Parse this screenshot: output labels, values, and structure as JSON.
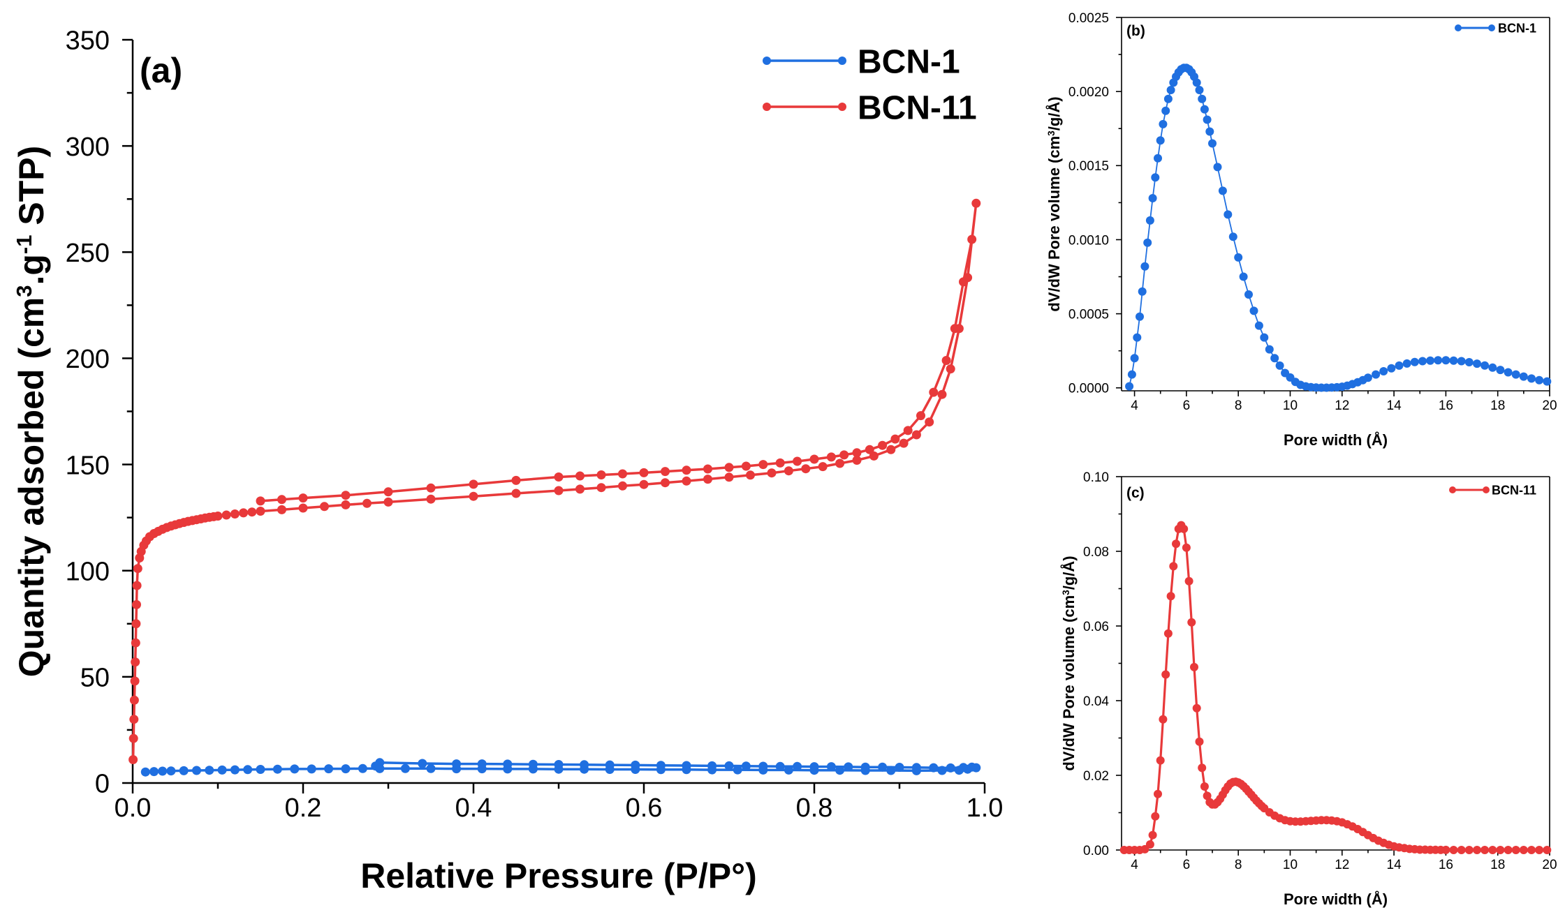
{
  "chart_data": [
    {
      "type": "line",
      "panel_label": "(a)",
      "xlabel": "Relative Pressure (P/P°)",
      "ylabel_parts": [
        "Quantity adsorbed (cm",
        "3",
        ".g",
        "-1",
        " STP)"
      ],
      "xlim": [
        0.0,
        1.0
      ],
      "ylim": [
        0,
        350
      ],
      "xticks": [
        0.0,
        0.2,
        0.4,
        0.6,
        0.8,
        1.0
      ],
      "xtick_labels": [
        "0.0",
        "0.2",
        "0.4",
        "0.6",
        "0.8",
        "1.0"
      ],
      "yticks": [
        0,
        50,
        100,
        150,
        200,
        250,
        300,
        350
      ],
      "ytick_labels": [
        "0",
        "50",
        "100",
        "150",
        "200",
        "250",
        "300",
        "350"
      ],
      "legend": [
        "BCN-1",
        "BCN-11"
      ],
      "legend_position": "top-right",
      "series": [
        {
          "name": "BCN-1",
          "color": "#1f6fe0",
          "x": [
            0.015,
            0.025,
            0.035,
            0.045,
            0.06,
            0.075,
            0.09,
            0.105,
            0.12,
            0.135,
            0.15,
            0.17,
            0.19,
            0.21,
            0.23,
            0.25,
            0.27,
            0.29,
            0.32,
            0.35,
            0.38,
            0.41,
            0.44,
            0.47,
            0.5,
            0.53,
            0.56,
            0.59,
            0.62,
            0.65,
            0.68,
            0.71,
            0.74,
            0.77,
            0.8,
            0.83,
            0.86,
            0.89,
            0.92,
            0.95,
            0.97,
            0.98,
            0.99,
            0.985,
            0.975,
            0.96,
            0.94,
            0.92,
            0.9,
            0.88,
            0.86,
            0.84,
            0.82,
            0.8,
            0.78,
            0.76,
            0.74,
            0.72,
            0.7,
            0.68,
            0.65,
            0.62,
            0.59,
            0.56,
            0.53,
            0.5,
            0.47,
            0.44,
            0.41,
            0.38,
            0.34,
            0.29,
            0.285,
            0.29
          ],
          "y": [
            5.2,
            5.4,
            5.6,
            5.7,
            5.8,
            5.9,
            6.0,
            6.1,
            6.2,
            6.3,
            6.4,
            6.5,
            6.6,
            6.6,
            6.7,
            6.7,
            6.8,
            6.8,
            6.8,
            6.8,
            6.7,
            6.7,
            6.6,
            6.6,
            6.5,
            6.5,
            6.4,
            6.4,
            6.3,
            6.3,
            6.2,
            6.2,
            6.1,
            6.1,
            6.0,
            6.0,
            5.9,
            5.9,
            5.8,
            5.9,
            6.0,
            6.5,
            7.2,
            7.5,
            7.3,
            7.1,
            7.2,
            7.3,
            7.4,
            7.5,
            7.5,
            7.6,
            7.7,
            7.7,
            7.8,
            7.8,
            7.9,
            8.0,
            8.1,
            8.1,
            8.2,
            8.3,
            8.4,
            8.5,
            8.6,
            8.7,
            8.8,
            8.9,
            9.0,
            9.0,
            9.2,
            9.6,
            8.0,
            6.8
          ]
        },
        {
          "name": "BCN-11",
          "color": "#e8393a",
          "x": [
            0.0005,
            0.001,
            0.0015,
            0.002,
            0.0025,
            0.003,
            0.0035,
            0.004,
            0.0045,
            0.005,
            0.006,
            0.008,
            0.01,
            0.013,
            0.016,
            0.02,
            0.025,
            0.03,
            0.035,
            0.04,
            0.045,
            0.05,
            0.055,
            0.06,
            0.065,
            0.07,
            0.075,
            0.08,
            0.085,
            0.09,
            0.095,
            0.1,
            0.11,
            0.12,
            0.13,
            0.14,
            0.15,
            0.175,
            0.2,
            0.225,
            0.25,
            0.275,
            0.3,
            0.35,
            0.4,
            0.45,
            0.5,
            0.525,
            0.55,
            0.575,
            0.6,
            0.625,
            0.65,
            0.675,
            0.7,
            0.725,
            0.75,
            0.77,
            0.79,
            0.81,
            0.83,
            0.85,
            0.87,
            0.89,
            0.905,
            0.92,
            0.935,
            0.95,
            0.96,
            0.97,
            0.98,
            0.99,
            0.985,
            0.975,
            0.965,
            0.955,
            0.94,
            0.925,
            0.91,
            0.895,
            0.88,
            0.865,
            0.85,
            0.835,
            0.82,
            0.8,
            0.78,
            0.76,
            0.74,
            0.72,
            0.7,
            0.675,
            0.65,
            0.625,
            0.6,
            0.575,
            0.55,
            0.525,
            0.5,
            0.45,
            0.4,
            0.35,
            0.3,
            0.25,
            0.2,
            0.175,
            0.15
          ],
          "y": [
            11,
            21,
            30,
            39,
            48,
            57,
            66,
            75,
            84,
            93,
            101,
            106,
            109,
            112,
            114,
            116,
            117.5,
            118.5,
            119.5,
            120.3,
            121,
            121.6,
            122.2,
            122.7,
            123.2,
            123.6,
            124,
            124.4,
            124.8,
            125.1,
            125.4,
            125.7,
            126.2,
            126.7,
            127.2,
            127.6,
            128,
            128.7,
            129.5,
            130.2,
            131,
            131.7,
            132.3,
            133.7,
            135,
            136.4,
            137.7,
            138.4,
            139.1,
            139.9,
            140.6,
            141.4,
            142.2,
            143.1,
            144,
            145,
            146,
            147,
            148,
            149,
            150.5,
            152,
            154,
            157,
            160,
            164,
            170,
            183,
            195,
            214,
            238,
            273,
            256,
            236,
            214,
            199,
            184,
            173,
            166,
            162,
            159,
            157,
            155.5,
            154.5,
            153.5,
            152.5,
            151.5,
            150.7,
            150,
            149.2,
            148.6,
            147.9,
            147.3,
            146.7,
            146.1,
            145.6,
            145.1,
            144.6,
            144.1,
            142.5,
            140.7,
            138.9,
            137.1,
            135.5,
            134.2,
            133.5,
            132.8
          ]
        }
      ]
    },
    {
      "type": "line",
      "panel_label": "(b)",
      "xlabel": "Pore width (Å)",
      "ylabel_parts": [
        "dV/dW Pore volume (cm",
        "3",
        "/g/Å)"
      ],
      "xlim": [
        3.5,
        20
      ],
      "ylim": [
        -2e-05,
        0.0025
      ],
      "xticks": [
        4,
        6,
        8,
        10,
        12,
        14,
        16,
        18,
        20
      ],
      "xtick_labels": [
        "4",
        "6",
        "8",
        "10",
        "12",
        "14",
        "16",
        "18",
        "20"
      ],
      "yticks": [
        0,
        0.0005,
        0.001,
        0.0015,
        0.002,
        0.0025
      ],
      "ytick_labels": [
        "0.0000",
        "0.0005",
        "0.0010",
        "0.0015",
        "0.0020",
        "0.0025"
      ],
      "legend": [
        "BCN-1"
      ],
      "legend_position": "top-right",
      "series": [
        {
          "name": "BCN-1",
          "color": "#1f6fe0",
          "x": [
            3.8,
            3.9,
            4,
            4.1,
            4.2,
            4.3,
            4.4,
            4.5,
            4.6,
            4.7,
            4.8,
            4.9,
            5,
            5.1,
            5.2,
            5.3,
            5.4,
            5.5,
            5.6,
            5.7,
            5.8,
            5.9,
            6,
            6.1,
            6.2,
            6.3,
            6.4,
            6.5,
            6.6,
            6.7,
            6.8,
            6.9,
            7,
            7.2,
            7.4,
            7.6,
            7.8,
            8,
            8.2,
            8.4,
            8.6,
            8.8,
            9,
            9.2,
            9.4,
            9.6,
            9.8,
            10,
            10.2,
            10.4,
            10.6,
            10.8,
            11,
            11.2,
            11.4,
            11.6,
            11.8,
            12,
            12.2,
            12.4,
            12.6,
            12.8,
            13,
            13.3,
            13.6,
            13.9,
            14.2,
            14.5,
            14.8,
            15.1,
            15.4,
            15.7,
            16,
            16.3,
            16.6,
            16.9,
            17.2,
            17.5,
            17.8,
            18.1,
            18.4,
            18.7,
            19,
            19.3,
            19.6,
            19.9
          ],
          "y": [
            1e-05,
            9e-05,
            0.0002,
            0.00034,
            0.00048,
            0.00065,
            0.00082,
            0.00098,
            0.00113,
            0.00128,
            0.00142,
            0.00155,
            0.00167,
            0.00178,
            0.00187,
            0.00195,
            0.00201,
            0.00206,
            0.0021,
            0.00213,
            0.00215,
            0.00216,
            0.00216,
            0.00215,
            0.00213,
            0.0021,
            0.00206,
            0.00201,
            0.00195,
            0.00188,
            0.00181,
            0.00173,
            0.00165,
            0.00149,
            0.00133,
            0.00117,
            0.00102,
            0.00088,
            0.00075,
            0.00063,
            0.00052,
            0.00042,
            0.00034,
            0.00026,
            0.0002,
            0.00015,
            0.0001,
            7e-05,
            4e-05,
            2e-05,
            1e-05,
            5e-06,
            2e-06,
            1e-06,
            1e-06,
            2e-06,
            4e-06,
            8e-06,
            1.5e-05,
            2.5e-05,
            3.8e-05,
            5.2e-05,
            6.8e-05,
            9e-05,
            0.000112,
            0.000132,
            0.00015,
            0.000164,
            0.000174,
            0.00018,
            0.000184,
            0.000186,
            0.000186,
            0.000184,
            0.00018,
            0.000173,
            0.000163,
            0.000151,
            0.000137,
            0.000121,
            0.000105,
            9e-05,
            7.6e-05,
            6.3e-05,
            5.2e-05,
            4.3e-05
          ]
        }
      ]
    },
    {
      "type": "line",
      "panel_label": "(c)",
      "xlabel": "Pore width (Å)",
      "ylabel_parts": [
        "dV/dW Pore volume (cm",
        "3",
        "/g/Å)"
      ],
      "xlim": [
        3.5,
        20
      ],
      "ylim": [
        0,
        0.1
      ],
      "xticks": [
        4,
        6,
        8,
        10,
        12,
        14,
        16,
        18,
        20
      ],
      "xtick_labels": [
        "4",
        "6",
        "8",
        "10",
        "12",
        "14",
        "16",
        "18",
        "20"
      ],
      "yticks": [
        0,
        0.02,
        0.04,
        0.06,
        0.08,
        0.1
      ],
      "ytick_labels": [
        "0.00",
        "0.02",
        "0.04",
        "0.06",
        "0.08",
        "0.10"
      ],
      "legend": [
        "BCN-11"
      ],
      "legend_position": "top-right",
      "series": [
        {
          "name": "BCN-11",
          "color": "#e8393a",
          "x": [
            3.6,
            3.8,
            4,
            4.2,
            4.4,
            4.6,
            4.7,
            4.8,
            4.9,
            5,
            5.1,
            5.2,
            5.3,
            5.4,
            5.5,
            5.6,
            5.7,
            5.8,
            5.9,
            6,
            6.1,
            6.2,
            6.3,
            6.4,
            6.5,
            6.6,
            6.7,
            6.8,
            6.9,
            7,
            7.1,
            7.2,
            7.3,
            7.4,
            7.5,
            7.6,
            7.7,
            7.8,
            7.9,
            8,
            8.1,
            8.2,
            8.3,
            8.4,
            8.5,
            8.6,
            8.7,
            8.8,
            8.9,
            9,
            9.2,
            9.4,
            9.6,
            9.8,
            10,
            10.2,
            10.4,
            10.6,
            10.8,
            11,
            11.2,
            11.4,
            11.6,
            11.8,
            12,
            12.2,
            12.4,
            12.6,
            12.8,
            13,
            13.2,
            13.4,
            13.6,
            13.8,
            14,
            14.2,
            14.4,
            14.6,
            14.8,
            15,
            15.2,
            15.4,
            15.6,
            15.8,
            16,
            16.3,
            16.6,
            16.9,
            17.2,
            17.5,
            17.8,
            18.1,
            18.4,
            18.7,
            19,
            19.3,
            19.6,
            19.9
          ],
          "y": [
            0,
            0,
            0,
            0,
            0.0002,
            0.0015,
            0.004,
            0.009,
            0.015,
            0.024,
            0.035,
            0.047,
            0.058,
            0.068,
            0.076,
            0.082,
            0.086,
            0.087,
            0.086,
            0.081,
            0.072,
            0.061,
            0.049,
            0.038,
            0.029,
            0.022,
            0.017,
            0.0145,
            0.0128,
            0.0122,
            0.0122,
            0.0128,
            0.0137,
            0.0148,
            0.016,
            0.017,
            0.0178,
            0.0182,
            0.0183,
            0.0181,
            0.0177,
            0.0171,
            0.0164,
            0.0156,
            0.0148,
            0.014,
            0.0132,
            0.0125,
            0.0118,
            0.0112,
            0.0101,
            0.0092,
            0.0085,
            0.008,
            0.0077,
            0.0076,
            0.0076,
            0.0077,
            0.0078,
            0.0079,
            0.008,
            0.008,
            0.0079,
            0.0077,
            0.0074,
            0.0069,
            0.0063,
            0.0056,
            0.0048,
            0.004,
            0.0032,
            0.0025,
            0.0019,
            0.0014,
            0.001,
            0.0007,
            0.0005,
            0.0003,
            0.0002,
            0.0001,
            0.0001,
            5e-05,
            3e-05,
            2e-05,
            1e-05,
            0,
            0,
            0,
            0,
            0,
            0,
            0,
            0,
            0,
            0,
            0,
            0,
            0
          ]
        }
      ]
    }
  ]
}
